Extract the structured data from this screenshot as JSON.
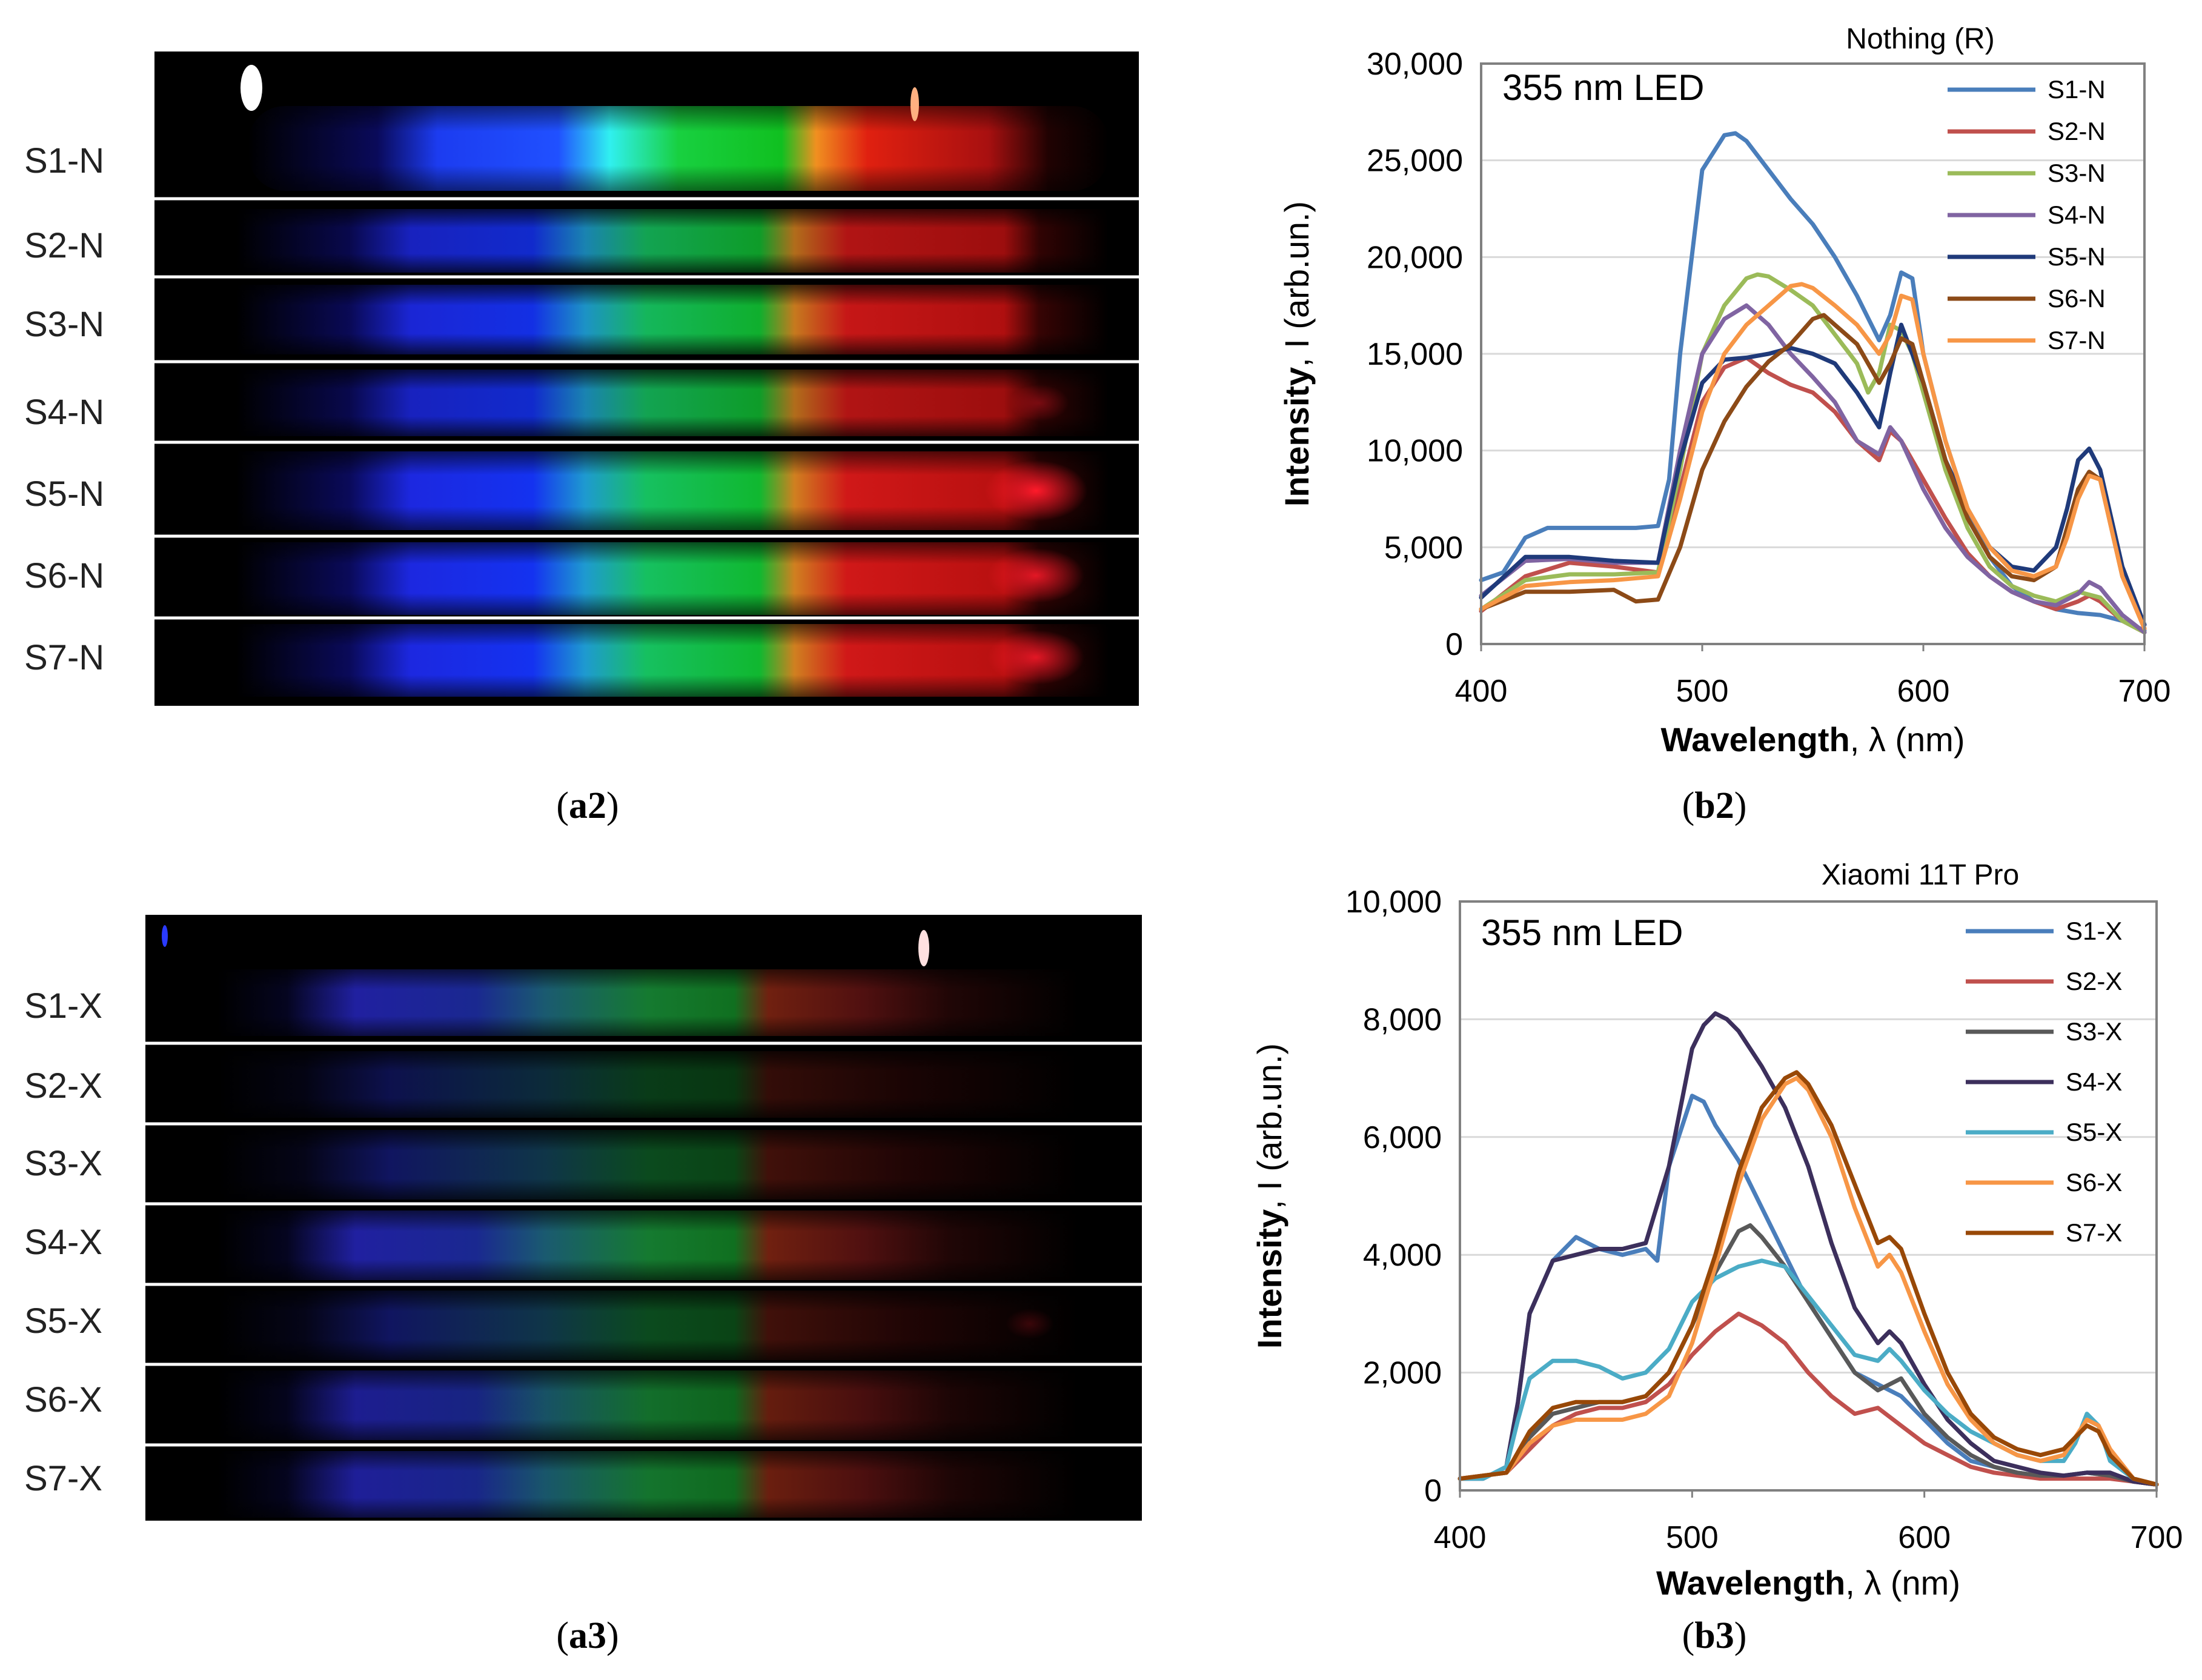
{
  "spectra_images": [
    {
      "id": "a2",
      "rows": [
        "S1-N",
        "S2-N",
        "S3-N",
        "S4-N",
        "S5-N",
        "S6-N",
        "S7-N"
      ]
    },
    {
      "id": "a3",
      "rows": [
        "S1-X",
        "S2-X",
        "S3-X",
        "S4-X",
        "S5-X",
        "S6-X",
        "S7-X"
      ]
    }
  ],
  "captions": {
    "a2": "a2",
    "b2": "b2",
    "a3": "a3",
    "b3": "b3"
  },
  "chart_data": [
    {
      "type": "line",
      "panel": "b2",
      "title": "Nothing (R)",
      "annotation": "355 nm LED",
      "xlabel_bold": "Wavelength",
      "xlabel_rest": ", λ (nm)",
      "ylabel_bold": "Intensity",
      "ylabel_rest": ", I (arb.un.)",
      "xlim": [
        400,
        700
      ],
      "ylim": [
        0,
        30000
      ],
      "xticks": [
        400,
        500,
        600,
        700
      ],
      "xtick_labels": [
        "400",
        "500",
        "600",
        "700"
      ],
      "yticks": [
        0,
        5000,
        10000,
        15000,
        20000,
        25000,
        30000
      ],
      "ytick_labels": [
        "0",
        "5,000",
        "10,000",
        "15,000",
        "20,000",
        "25,000",
        "30,000"
      ],
      "grid": true,
      "legend": "top-right",
      "series": [
        {
          "name": "S1-N",
          "color": "#4a7ebb",
          "x": [
            400,
            410,
            420,
            430,
            450,
            470,
            480,
            485,
            490,
            500,
            510,
            515,
            520,
            530,
            540,
            550,
            560,
            570,
            580,
            585,
            590,
            595,
            600,
            610,
            620,
            630,
            640,
            650,
            660,
            670,
            680,
            690,
            700
          ],
          "y": [
            3300,
            3700,
            5500,
            6000,
            6000,
            6000,
            6100,
            8500,
            15000,
            24500,
            26300,
            26400,
            26000,
            24500,
            23000,
            21700,
            20000,
            18000,
            15700,
            17000,
            19200,
            18900,
            15000,
            10500,
            7000,
            4500,
            3000,
            2200,
            1800,
            1600,
            1500,
            1200,
            700
          ]
        },
        {
          "name": "S2-N",
          "color": "#c0504d",
          "x": [
            400,
            420,
            440,
            460,
            480,
            490,
            500,
            510,
            520,
            530,
            540,
            550,
            560,
            570,
            580,
            585,
            590,
            600,
            610,
            620,
            630,
            640,
            650,
            660,
            670,
            675,
            680,
            690,
            700
          ],
          "y": [
            1700,
            3500,
            4200,
            4000,
            3700,
            8000,
            12500,
            14300,
            14800,
            14000,
            13400,
            13000,
            12000,
            10500,
            9500,
            11000,
            10500,
            8500,
            6500,
            4700,
            3500,
            2700,
            2200,
            1800,
            2200,
            2500,
            2200,
            1200,
            600
          ]
        },
        {
          "name": "S3-N",
          "color": "#9bbb59",
          "x": [
            400,
            420,
            440,
            460,
            480,
            490,
            500,
            510,
            520,
            525,
            530,
            540,
            550,
            560,
            570,
            575,
            580,
            585,
            590,
            595,
            600,
            610,
            620,
            630,
            640,
            650,
            660,
            670,
            680,
            690,
            700
          ],
          "y": [
            1800,
            3300,
            3600,
            3600,
            3700,
            9000,
            15000,
            17500,
            18900,
            19100,
            19000,
            18300,
            17500,
            16000,
            14500,
            13000,
            14000,
            16500,
            16200,
            15000,
            13000,
            9000,
            6000,
            4000,
            3000,
            2500,
            2200,
            2700,
            2400,
            1200,
            600
          ]
        },
        {
          "name": "S4-N",
          "color": "#8064a2",
          "x": [
            400,
            420,
            440,
            460,
            480,
            490,
            500,
            510,
            520,
            530,
            540,
            550,
            560,
            570,
            580,
            585,
            590,
            600,
            610,
            620,
            630,
            640,
            650,
            660,
            670,
            675,
            680,
            690,
            700
          ],
          "y": [
            2500,
            4300,
            4400,
            4200,
            4200,
            10000,
            15000,
            16800,
            17500,
            16500,
            15000,
            13800,
            12500,
            10500,
            9800,
            11200,
            10500,
            8000,
            6000,
            4500,
            3500,
            2700,
            2200,
            2000,
            2600,
            3200,
            2900,
            1500,
            600
          ]
        },
        {
          "name": "S5-N",
          "color": "#1f3a7a",
          "x": [
            400,
            420,
            440,
            460,
            480,
            490,
            500,
            510,
            520,
            530,
            540,
            550,
            560,
            570,
            580,
            585,
            590,
            600,
            610,
            620,
            630,
            640,
            650,
            660,
            665,
            670,
            675,
            680,
            690,
            700
          ],
          "y": [
            2400,
            4500,
            4500,
            4300,
            4200,
            9500,
            13500,
            14700,
            14800,
            15000,
            15300,
            15000,
            14500,
            13000,
            11200,
            14000,
            16500,
            13500,
            9500,
            7000,
            5000,
            4000,
            3800,
            5000,
            7000,
            9500,
            10100,
            9000,
            4000,
            1000
          ]
        },
        {
          "name": "S6-N",
          "color": "#8c4a17",
          "x": [
            400,
            420,
            440,
            460,
            470,
            480,
            490,
            500,
            510,
            520,
            530,
            540,
            550,
            555,
            560,
            570,
            580,
            585,
            590,
            595,
            600,
            610,
            620,
            630,
            640,
            650,
            660,
            670,
            675,
            680,
            690,
            700
          ],
          "y": [
            1800,
            2700,
            2700,
            2800,
            2200,
            2300,
            5000,
            9000,
            11500,
            13300,
            14600,
            15500,
            16800,
            17000,
            16500,
            15500,
            13500,
            14500,
            15800,
            15500,
            13500,
            9500,
            6500,
            4500,
            3500,
            3300,
            4000,
            8000,
            8900,
            8500,
            3500,
            800
          ]
        },
        {
          "name": "S7-N",
          "color": "#f79646",
          "x": [
            400,
            420,
            440,
            460,
            480,
            490,
            500,
            510,
            520,
            530,
            540,
            545,
            550,
            560,
            570,
            580,
            585,
            590,
            595,
            600,
            610,
            620,
            630,
            640,
            650,
            660,
            665,
            670,
            675,
            680,
            690,
            700
          ],
          "y": [
            1800,
            3000,
            3200,
            3300,
            3500,
            7500,
            12000,
            15000,
            16500,
            17500,
            18500,
            18600,
            18400,
            17500,
            16500,
            15000,
            16000,
            18000,
            17800,
            15000,
            10500,
            7000,
            5000,
            3800,
            3500,
            4000,
            5500,
            7500,
            8700,
            8500,
            3500,
            800
          ]
        }
      ]
    },
    {
      "type": "line",
      "panel": "b3",
      "title": "Xiaomi 11T Pro",
      "annotation": "355 nm LED",
      "xlabel_bold": "Wavelength",
      "xlabel_rest": ", λ (nm)",
      "ylabel_bold": "Intensity",
      "ylabel_rest": ", I (arb.un.)",
      "xlim": [
        400,
        700
      ],
      "ylim": [
        0,
        10000
      ],
      "xticks": [
        400,
        500,
        600,
        700
      ],
      "xtick_labels": [
        "400",
        "500",
        "600",
        "700"
      ],
      "yticks": [
        0,
        2000,
        4000,
        6000,
        8000,
        10000
      ],
      "ytick_labels": [
        "0",
        "2,000",
        "4,000",
        "6,000",
        "8,000",
        "10,000"
      ],
      "grid": true,
      "legend": "top-right",
      "series": [
        {
          "name": "S1-X",
          "color": "#4a7ebb",
          "x": [
            400,
            410,
            420,
            425,
            430,
            440,
            450,
            460,
            470,
            480,
            485,
            490,
            500,
            505,
            510,
            520,
            530,
            540,
            550,
            560,
            570,
            580,
            590,
            600,
            610,
            620,
            630,
            640,
            650,
            660,
            670,
            680,
            690,
            700
          ],
          "y": [
            200,
            200,
            400,
            1500,
            3000,
            3900,
            4300,
            4100,
            4000,
            4100,
            3900,
            5500,
            6700,
            6600,
            6200,
            5600,
            4800,
            4000,
            3200,
            2600,
            2000,
            1800,
            1600,
            1200,
            800,
            500,
            400,
            300,
            250,
            250,
            300,
            250,
            150,
            100
          ]
        },
        {
          "name": "S2-X",
          "color": "#c0504d",
          "x": [
            400,
            420,
            430,
            440,
            450,
            460,
            470,
            480,
            490,
            500,
            510,
            520,
            530,
            540,
            550,
            560,
            570,
            580,
            590,
            600,
            610,
            620,
            630,
            640,
            650,
            660,
            670,
            680,
            690,
            700
          ],
          "y": [
            200,
            300,
            700,
            1100,
            1300,
            1400,
            1400,
            1500,
            1800,
            2300,
            2700,
            3000,
            2800,
            2500,
            2000,
            1600,
            1300,
            1400,
            1100,
            800,
            600,
            400,
            300,
            250,
            200,
            200,
            200,
            200,
            150,
            100
          ]
        },
        {
          "name": "S3-X",
          "color": "#595959",
          "x": [
            400,
            420,
            430,
            440,
            450,
            460,
            470,
            480,
            490,
            500,
            510,
            520,
            525,
            530,
            540,
            550,
            560,
            570,
            580,
            590,
            600,
            610,
            620,
            630,
            640,
            650,
            660,
            670,
            680,
            690,
            700
          ],
          "y": [
            200,
            300,
            900,
            1300,
            1400,
            1500,
            1500,
            1600,
            2000,
            2800,
            3700,
            4400,
            4500,
            4300,
            3800,
            3200,
            2600,
            2000,
            1700,
            1900,
            1300,
            900,
            600,
            400,
            300,
            250,
            250,
            300,
            250,
            150,
            100
          ]
        },
        {
          "name": "S4-X",
          "color": "#3c2f5c",
          "x": [
            400,
            410,
            420,
            425,
            430,
            440,
            450,
            460,
            470,
            480,
            490,
            500,
            505,
            510,
            515,
            520,
            530,
            540,
            550,
            560,
            570,
            580,
            585,
            590,
            600,
            610,
            620,
            630,
            640,
            650,
            660,
            670,
            680,
            690,
            700
          ],
          "y": [
            200,
            200,
            400,
            1500,
            3000,
            3900,
            4000,
            4100,
            4100,
            4200,
            5500,
            7500,
            7900,
            8100,
            8000,
            7800,
            7200,
            6500,
            5500,
            4200,
            3100,
            2500,
            2700,
            2500,
            1800,
            1200,
            800,
            500,
            400,
            300,
            250,
            300,
            300,
            150,
            100
          ]
        },
        {
          "name": "S5-X",
          "color": "#4bacc6",
          "x": [
            400,
            410,
            420,
            425,
            430,
            440,
            450,
            460,
            470,
            480,
            490,
            500,
            510,
            520,
            530,
            540,
            550,
            560,
            570,
            580,
            585,
            590,
            600,
            610,
            620,
            630,
            640,
            650,
            660,
            665,
            670,
            675,
            680,
            690,
            700
          ],
          "y": [
            200,
            200,
            400,
            1200,
            1900,
            2200,
            2200,
            2100,
            1900,
            2000,
            2400,
            3200,
            3600,
            3800,
            3900,
            3800,
            3300,
            2800,
            2300,
            2200,
            2400,
            2200,
            1700,
            1300,
            1000,
            800,
            600,
            500,
            500,
            800,
            1300,
            1100,
            500,
            200,
            100
          ]
        },
        {
          "name": "S6-X",
          "color": "#f79646",
          "x": [
            400,
            420,
            430,
            440,
            450,
            460,
            470,
            480,
            490,
            500,
            510,
            520,
            530,
            540,
            545,
            550,
            560,
            570,
            580,
            585,
            590,
            600,
            610,
            620,
            630,
            640,
            650,
            660,
            665,
            670,
            675,
            680,
            690,
            700
          ],
          "y": [
            200,
            300,
            800,
            1100,
            1200,
            1200,
            1200,
            1300,
            1600,
            2500,
            3800,
            5200,
            6300,
            6900,
            7000,
            6800,
            6000,
            4800,
            3800,
            4000,
            3700,
            2700,
            1800,
            1200,
            800,
            600,
            500,
            600,
            900,
            1200,
            1100,
            700,
            200,
            100
          ]
        },
        {
          "name": "S7-X",
          "color": "#984807",
          "x": [
            400,
            420,
            430,
            440,
            450,
            460,
            470,
            480,
            490,
            500,
            510,
            520,
            530,
            540,
            545,
            550,
            560,
            570,
            580,
            585,
            590,
            600,
            610,
            620,
            630,
            640,
            650,
            660,
            665,
            670,
            675,
            680,
            690,
            700
          ],
          "y": [
            200,
            300,
            1000,
            1400,
            1500,
            1500,
            1500,
            1600,
            2000,
            2800,
            4000,
            5400,
            6500,
            7000,
            7100,
            6900,
            6200,
            5200,
            4200,
            4300,
            4100,
            3000,
            2000,
            1300,
            900,
            700,
            600,
            700,
            900,
            1100,
            1000,
            600,
            200,
            100
          ]
        }
      ]
    }
  ]
}
